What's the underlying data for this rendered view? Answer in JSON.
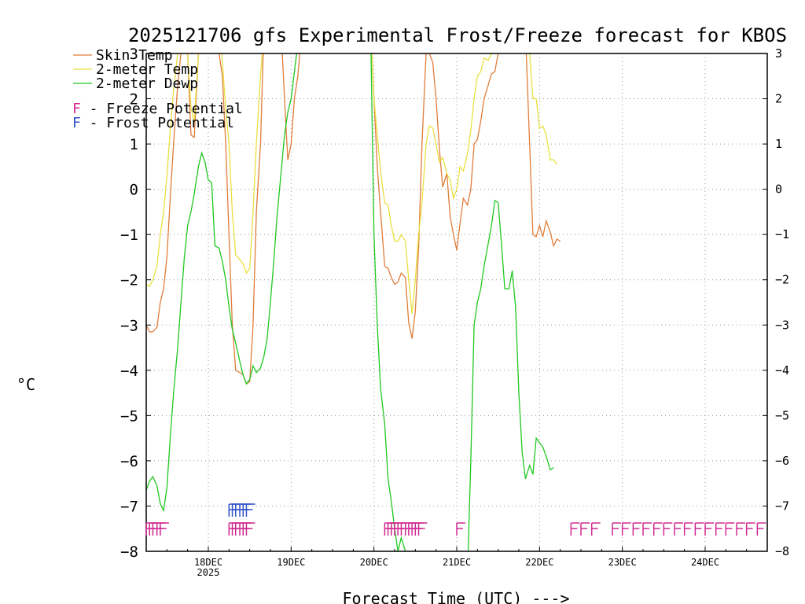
{
  "chart_data": {
    "type": "line",
    "title": "2025121706 gfs Experimental Frost/Freeze forecast for KBOS",
    "xlabel": "Forecast Time (UTC) --->",
    "ylabel": "°C",
    "ylim": [
      -8,
      3
    ],
    "xlim": [
      17.25,
      24.75
    ],
    "grid": true,
    "x_unit": "day of December 2025 (fractional, UTC)",
    "x_ticks": [
      {
        "x": 18,
        "label": "18DEC",
        "sublabel": "2025"
      },
      {
        "x": 19,
        "label": "19DEC"
      },
      {
        "x": 20,
        "label": "20DEC"
      },
      {
        "x": 21,
        "label": "21DEC"
      },
      {
        "x": 22,
        "label": "22DEC"
      },
      {
        "x": 23,
        "label": "23DEC"
      },
      {
        "x": 24,
        "label": "24DEC"
      }
    ],
    "y_ticks": [
      -8,
      -7,
      -6,
      -5,
      -4,
      -3,
      -2,
      -1,
      0,
      1,
      2,
      3
    ],
    "series": [
      {
        "name": "Skin Temp",
        "color": "#e07d3a",
        "points": [
          [
            17.25,
            -3.0
          ],
          [
            17.29,
            -3.15
          ],
          [
            17.33,
            -3.15
          ],
          [
            17.38,
            -3.05
          ],
          [
            17.42,
            -2.5
          ],
          [
            17.46,
            -2.2
          ],
          [
            17.5,
            -1.5
          ],
          [
            17.54,
            -0.2
          ],
          [
            17.58,
            1.0
          ],
          [
            17.63,
            2.3
          ],
          [
            17.67,
            3.0
          ],
          [
            17.71,
            3.5
          ],
          [
            17.75,
            3.0
          ],
          [
            17.79,
            1.2
          ],
          [
            17.83,
            1.15
          ],
          [
            17.88,
            3.0
          ],
          [
            17.92,
            3.5
          ],
          [
            18.04,
            3.5
          ],
          [
            18.08,
            3.0
          ],
          [
            18.13,
            3.0
          ],
          [
            18.17,
            2.5
          ],
          [
            18.21,
            1.0
          ],
          [
            18.25,
            -1.0
          ],
          [
            18.29,
            -3.0
          ],
          [
            18.33,
            -4.0
          ],
          [
            18.38,
            -4.05
          ],
          [
            18.42,
            -4.1
          ],
          [
            18.46,
            -4.3
          ],
          [
            18.5,
            -4.25
          ],
          [
            18.54,
            -3.0
          ],
          [
            18.58,
            -0.5
          ],
          [
            18.63,
            1.0
          ],
          [
            18.67,
            3.5
          ],
          [
            18.88,
            3.5
          ],
          [
            18.92,
            2.0
          ],
          [
            18.96,
            0.65
          ],
          [
            19.0,
            1.0
          ],
          [
            19.04,
            2.0
          ],
          [
            19.08,
            2.5
          ],
          [
            19.13,
            3.5
          ],
          [
            19.96,
            3.5
          ],
          [
            20.0,
            2.0
          ],
          [
            20.04,
            0.5
          ],
          [
            20.08,
            -0.5
          ],
          [
            20.13,
            -1.7
          ],
          [
            20.17,
            -1.75
          ],
          [
            20.21,
            -1.95
          ],
          [
            20.25,
            -2.1
          ],
          [
            20.29,
            -2.05
          ],
          [
            20.33,
            -1.85
          ],
          [
            20.38,
            -1.95
          ],
          [
            20.42,
            -2.95
          ],
          [
            20.46,
            -3.3
          ],
          [
            20.5,
            -2.7
          ],
          [
            20.54,
            -1.3
          ],
          [
            20.58,
            1.0
          ],
          [
            20.63,
            3.0
          ],
          [
            20.67,
            3.0
          ],
          [
            20.71,
            2.8
          ],
          [
            20.75,
            2.0
          ],
          [
            20.79,
            0.9
          ],
          [
            20.83,
            0.05
          ],
          [
            20.88,
            0.35
          ],
          [
            20.92,
            -0.6
          ],
          [
            20.96,
            -1.0
          ],
          [
            21.0,
            -1.35
          ],
          [
            21.04,
            -0.75
          ],
          [
            21.08,
            -0.2
          ],
          [
            21.13,
            -0.35
          ],
          [
            21.17,
            0.0
          ],
          [
            21.21,
            1.0
          ],
          [
            21.25,
            1.1
          ],
          [
            21.29,
            1.5
          ],
          [
            21.33,
            2.0
          ],
          [
            21.38,
            2.3
          ],
          [
            21.42,
            2.55
          ],
          [
            21.46,
            2.6
          ],
          [
            21.5,
            3.0
          ],
          [
            21.54,
            3.5
          ],
          [
            21.83,
            3.5
          ],
          [
            21.88,
            1.0
          ],
          [
            21.92,
            -1.0
          ],
          [
            21.96,
            -1.05
          ],
          [
            22.0,
            -0.8
          ],
          [
            22.04,
            -1.05
          ],
          [
            22.08,
            -0.7
          ],
          [
            22.13,
            -0.95
          ],
          [
            22.17,
            -1.25
          ],
          [
            22.21,
            -1.1
          ],
          [
            22.25,
            -1.15
          ]
        ]
      },
      {
        "name": "2-meter Temp",
        "color": "#e8e040",
        "points": [
          [
            17.25,
            -2.1
          ],
          [
            17.29,
            -2.15
          ],
          [
            17.33,
            -2.0
          ],
          [
            17.38,
            -1.7
          ],
          [
            17.42,
            -1.0
          ],
          [
            17.46,
            -0.5
          ],
          [
            17.5,
            0.3
          ],
          [
            17.54,
            1.3
          ],
          [
            17.58,
            2.2
          ],
          [
            17.63,
            3.0
          ],
          [
            17.67,
            3.5
          ],
          [
            17.71,
            3.5
          ],
          [
            17.75,
            3.0
          ],
          [
            17.79,
            1.8
          ],
          [
            17.83,
            1.5
          ],
          [
            17.88,
            3.0
          ],
          [
            17.92,
            3.5
          ],
          [
            18.13,
            3.5
          ],
          [
            18.17,
            2.8
          ],
          [
            18.21,
            1.8
          ],
          [
            18.25,
            1.0
          ],
          [
            18.29,
            -0.5
          ],
          [
            18.33,
            -1.45
          ],
          [
            18.38,
            -1.55
          ],
          [
            18.42,
            -1.65
          ],
          [
            18.46,
            -1.85
          ],
          [
            18.5,
            -1.75
          ],
          [
            18.54,
            -0.5
          ],
          [
            18.58,
            1.0
          ],
          [
            18.63,
            2.5
          ],
          [
            18.67,
            3.5
          ],
          [
            19.96,
            3.5
          ],
          [
            20.0,
            2.0
          ],
          [
            20.04,
            1.2
          ],
          [
            20.08,
            0.4
          ],
          [
            20.13,
            -0.3
          ],
          [
            20.17,
            -0.35
          ],
          [
            20.21,
            -0.8
          ],
          [
            20.25,
            -1.15
          ],
          [
            20.29,
            -1.15
          ],
          [
            20.33,
            -1.0
          ],
          [
            20.38,
            -1.15
          ],
          [
            20.42,
            -2.0
          ],
          [
            20.46,
            -2.75
          ],
          [
            20.5,
            -2.0
          ],
          [
            20.54,
            -1.0
          ],
          [
            20.58,
            -0.3
          ],
          [
            20.63,
            1.0
          ],
          [
            20.67,
            1.4
          ],
          [
            20.71,
            1.35
          ],
          [
            20.75,
            1.0
          ],
          [
            20.79,
            0.6
          ],
          [
            20.83,
            0.7
          ],
          [
            20.88,
            0.35
          ],
          [
            20.92,
            0.2
          ],
          [
            20.96,
            -0.2
          ],
          [
            21.0,
            0.0
          ],
          [
            21.04,
            0.5
          ],
          [
            21.08,
            0.4
          ],
          [
            21.13,
            0.8
          ],
          [
            21.17,
            1.3
          ],
          [
            21.21,
            2.0
          ],
          [
            21.25,
            2.5
          ],
          [
            21.29,
            2.6
          ],
          [
            21.33,
            2.9
          ],
          [
            21.38,
            2.85
          ],
          [
            21.42,
            3.0
          ],
          [
            21.46,
            3.0
          ],
          [
            21.5,
            3.2
          ],
          [
            21.54,
            3.5
          ],
          [
            21.83,
            3.5
          ],
          [
            21.88,
            3.0
          ],
          [
            21.92,
            2.0
          ],
          [
            21.96,
            2.0
          ],
          [
            22.0,
            1.35
          ],
          [
            22.04,
            1.4
          ],
          [
            22.08,
            1.2
          ],
          [
            22.13,
            0.65
          ],
          [
            22.17,
            0.65
          ],
          [
            22.21,
            0.55
          ]
        ]
      },
      {
        "name": "2-meter Dewp",
        "color": "#20c820",
        "points": [
          [
            17.25,
            -6.65
          ],
          [
            17.29,
            -6.45
          ],
          [
            17.33,
            -6.35
          ],
          [
            17.38,
            -6.55
          ],
          [
            17.42,
            -6.95
          ],
          [
            17.46,
            -7.1
          ],
          [
            17.5,
            -6.6
          ],
          [
            17.54,
            -5.5
          ],
          [
            17.58,
            -4.5
          ],
          [
            17.63,
            -3.5
          ],
          [
            17.67,
            -2.5
          ],
          [
            17.71,
            -1.5
          ],
          [
            17.75,
            -0.8
          ],
          [
            17.79,
            -0.5
          ],
          [
            17.83,
            -0.1
          ],
          [
            17.88,
            0.5
          ],
          [
            17.92,
            0.8
          ],
          [
            17.96,
            0.6
          ],
          [
            18.0,
            0.2
          ],
          [
            18.04,
            0.15
          ],
          [
            18.08,
            -1.25
          ],
          [
            18.13,
            -1.3
          ],
          [
            18.17,
            -1.6
          ],
          [
            18.21,
            -2.0
          ],
          [
            18.25,
            -2.6
          ],
          [
            18.29,
            -3.1
          ],
          [
            18.33,
            -3.4
          ],
          [
            18.38,
            -3.8
          ],
          [
            18.42,
            -4.1
          ],
          [
            18.46,
            -4.3
          ],
          [
            18.5,
            -4.2
          ],
          [
            18.54,
            -3.9
          ],
          [
            18.58,
            -4.05
          ],
          [
            18.63,
            -3.95
          ],
          [
            18.67,
            -3.7
          ],
          [
            18.71,
            -3.3
          ],
          [
            18.75,
            -2.5
          ],
          [
            18.79,
            -1.6
          ],
          [
            18.83,
            -0.6
          ],
          [
            18.88,
            0.4
          ],
          [
            18.92,
            1.2
          ],
          [
            18.96,
            1.7
          ],
          [
            19.0,
            2.0
          ],
          [
            19.04,
            2.6
          ],
          [
            19.08,
            3.2
          ],
          [
            19.13,
            3.5
          ],
          [
            19.96,
            3.5
          ],
          [
            20.0,
            -1.0
          ],
          [
            20.04,
            -3.0
          ],
          [
            20.08,
            -4.4
          ],
          [
            20.13,
            -5.2
          ],
          [
            20.17,
            -6.4
          ],
          [
            20.21,
            -6.9
          ],
          [
            20.25,
            -7.5
          ],
          [
            20.29,
            -8.0
          ],
          [
            20.33,
            -7.7
          ],
          [
            20.38,
            -8.0
          ],
          [
            20.42,
            -8.5
          ],
          [
            21.13,
            -8.5
          ],
          [
            21.17,
            -6.0
          ],
          [
            21.21,
            -3.0
          ],
          [
            21.25,
            -2.5
          ],
          [
            21.29,
            -2.2
          ],
          [
            21.33,
            -1.7
          ],
          [
            21.38,
            -1.2
          ],
          [
            21.42,
            -0.8
          ],
          [
            21.46,
            -0.25
          ],
          [
            21.5,
            -0.3
          ],
          [
            21.54,
            -1.2
          ],
          [
            21.58,
            -2.2
          ],
          [
            21.63,
            -2.2
          ],
          [
            21.67,
            -1.8
          ],
          [
            21.71,
            -2.6
          ],
          [
            21.75,
            -4.5
          ],
          [
            21.79,
            -5.8
          ],
          [
            21.83,
            -6.4
          ],
          [
            21.88,
            -6.1
          ],
          [
            21.92,
            -6.3
          ],
          [
            21.96,
            -5.5
          ],
          [
            22.0,
            -5.6
          ],
          [
            22.04,
            -5.7
          ],
          [
            22.08,
            -5.9
          ],
          [
            22.13,
            -6.2
          ],
          [
            22.17,
            -6.15
          ]
        ]
      }
    ],
    "frost_freeze_legend": [
      {
        "letter": "F",
        "text": " - Freeze Potential",
        "color": "#d02890"
      },
      {
        "letter": "F",
        "text": " - Frost Potential",
        "color": "#3050c8"
      }
    ],
    "freeze_marks": [
      17.25,
      17.29,
      17.33,
      17.38,
      17.42,
      18.25,
      18.29,
      18.33,
      18.38,
      18.42,
      18.46,
      20.13,
      20.17,
      20.21,
      20.25,
      20.29,
      20.33,
      20.38,
      20.42,
      20.46,
      20.5,
      20.54,
      21.0,
      22.38,
      22.5,
      22.63,
      22.88,
      23.0,
      23.13,
      23.25,
      23.38,
      23.5,
      23.63,
      23.75,
      23.88,
      24.0,
      24.13,
      24.25,
      24.38,
      24.5,
      24.63
    ],
    "frost_marks": [
      18.25,
      18.29,
      18.33,
      18.38,
      18.42,
      18.46
    ]
  }
}
